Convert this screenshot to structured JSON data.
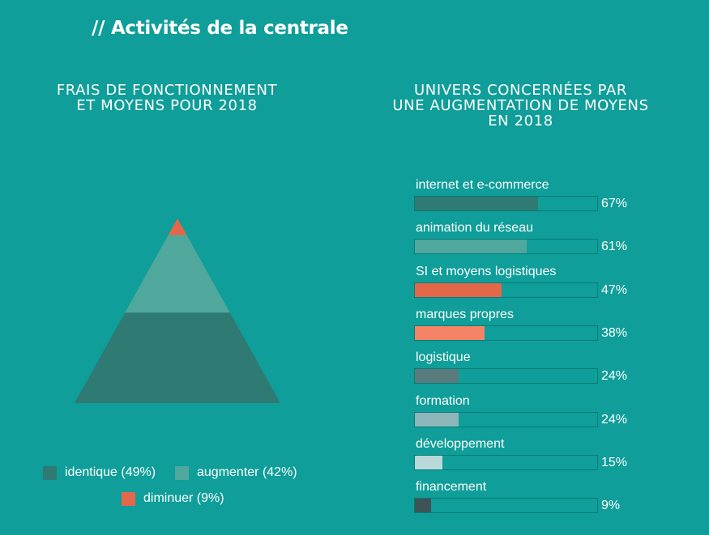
{
  "page_title": "// Activités de la centrale",
  "left_chart": {
    "title_line1": "FRAIS DE FONCTIONNEMENT",
    "title_line2": "ET MOYENS POUR 2018"
  },
  "right_chart": {
    "title_line1": "UNIVERS CONCERNÉES PAR",
    "title_line2": "UNE AUGMENTATION DE MOYENS",
    "title_line3": "EN 2018"
  },
  "chart_data": [
    {
      "type": "pyramid",
      "title": "FRAIS DE FONCTIONNEMENT ET MOYENS POUR 2018",
      "segments": [
        {
          "label": "identique (49%)",
          "name": "identique",
          "value": 49,
          "color": "#2f7a72"
        },
        {
          "label": "augmenter (42%)",
          "name": "augmenter",
          "value": 42,
          "color": "#4fa89b"
        },
        {
          "label": "diminuer (9%)",
          "name": "diminuer",
          "value": 9,
          "color": "#e4674a"
        }
      ]
    },
    {
      "type": "bar",
      "orientation": "horizontal",
      "title": "UNIVERS CONCERNÉES PAR UNE AUGMENTATION DE MOYENS EN 2018",
      "xlim": [
        0,
        100
      ],
      "categories": [
        "internet et e-commerce",
        "animation du réseau",
        "SI et moyens logistiques",
        "marques propres",
        "logistique",
        "formation",
        "développement",
        "financement"
      ],
      "values": [
        67,
        61,
        47,
        38,
        24,
        24,
        15,
        9
      ],
      "value_labels": [
        "67%",
        "61%",
        "47%",
        "38%",
        "24%",
        "24%",
        "15%",
        "9%"
      ],
      "colors": [
        "#2f7a72",
        "#4fa89b",
        "#e4674a",
        "#f58466",
        "#5a7b7d",
        "#8cb6b9",
        "#b8d8da",
        "#3d5356"
      ]
    }
  ]
}
